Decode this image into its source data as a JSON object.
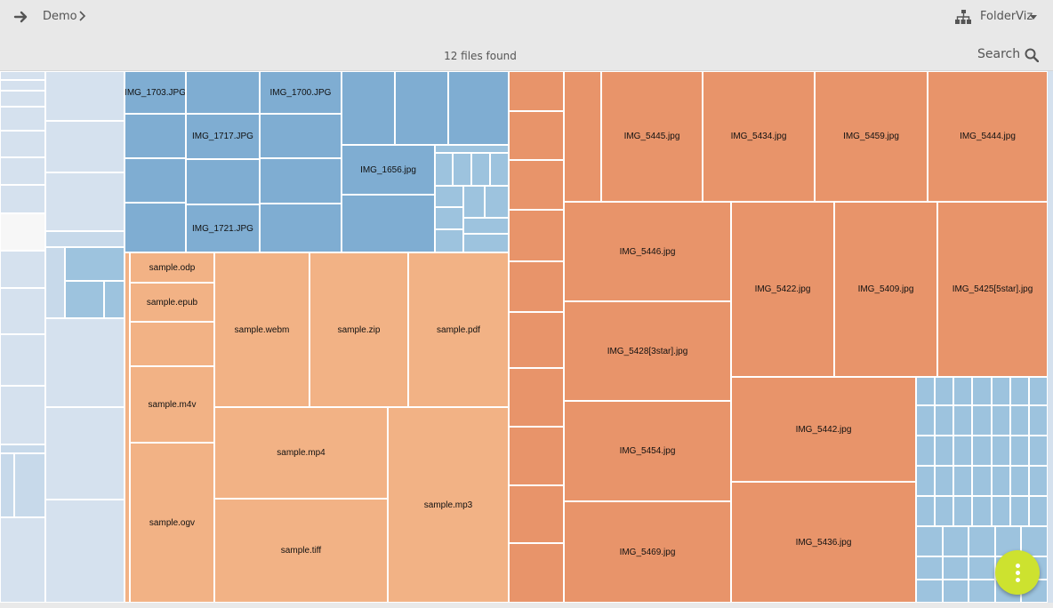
{
  "header": {
    "breadcrumb": "Demo",
    "app_name": "FolderViz",
    "status": "12 files found",
    "search_label": "Search"
  },
  "icons": {
    "back": "arrow-right-icon",
    "breadcrumb_separator": "chevron-right-icon",
    "app": "sitemap-icon",
    "app_menu": "caret-down-icon",
    "search": "search-icon",
    "fab": "more-vertical-icon"
  },
  "colors": {
    "light_blue": "#d5e1ee",
    "mid_blue": "#9dc3de",
    "blue": "#7fadd2",
    "light_orange": "#f2b285",
    "orange": "#e8946a",
    "fab": "#cde22f"
  },
  "treemap": {
    "blue_files": [
      "IMG_1703.JPG",
      "IMG_1700.JPG",
      "IMG_1717.JPG",
      "IMG_1656.jpg",
      "IMG_1721.JPG"
    ],
    "sample_files": [
      "sample.odp",
      "sample.epub",
      "sample.webm",
      "sample.zip",
      "sample.pdf",
      "sample.m4v",
      "sample.mp4",
      "sample.mp3",
      "sample.ogv",
      "sample.tiff"
    ],
    "photo_files": [
      "IMG_5445.jpg",
      "IMG_5434.jpg",
      "IMG_5459.jpg",
      "IMG_5444.jpg",
      "IMG_5446.jpg",
      "IMG_5422.jpg",
      "IMG_5409.jpg",
      "IMG_5425[5star].jpg",
      "IMG_5428[3star].jpg",
      "IMG_5442.jpg",
      "IMG_5454.jpg",
      "IMG_5436.jpg",
      "IMG_5469.jpg"
    ]
  }
}
